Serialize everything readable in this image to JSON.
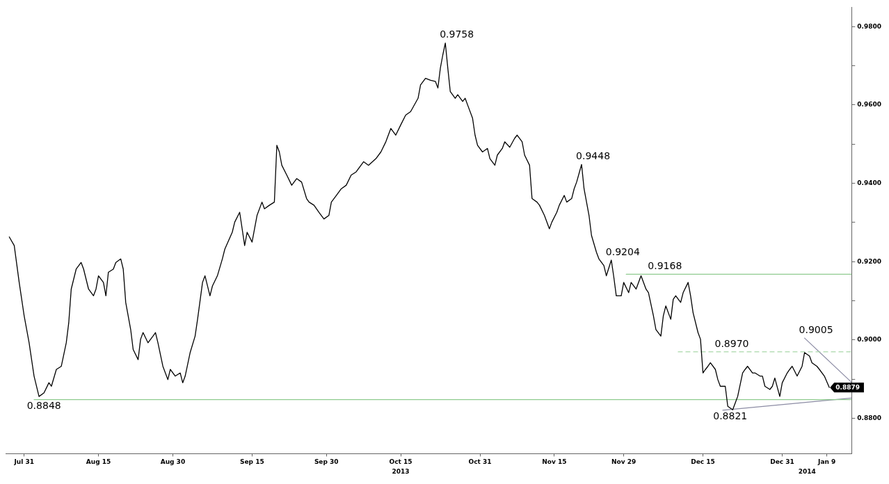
{
  "chart_data": {
    "type": "line",
    "marker": "none",
    "legend": false,
    "x": [
      "2013-07-28",
      "2013-07-29",
      "2013-07-30",
      "2013-07-31",
      "2013-08-01",
      "2013-08-02",
      "2013-08-03",
      "2013-08-04",
      "2013-08-05",
      "2013-08-05T12:00",
      "2013-08-06T12:00",
      "2013-08-07T12:00",
      "2013-08-08T12:00",
      "2013-08-09",
      "2013-08-09T12:00",
      "2013-08-10T12:00",
      "2013-08-11T12:00",
      "2013-08-12",
      "2013-08-13",
      "2013-08-14",
      "2013-08-14T12:00",
      "2013-08-15",
      "2013-08-16",
      "2013-08-16T12:00",
      "2013-08-17",
      "2013-08-18",
      "2013-08-18T12:00",
      "2013-08-19T12:00",
      "2013-08-20",
      "2013-08-20T12:00",
      "2013-08-21T12:00",
      "2013-08-22",
      "2013-08-23",
      "2013-08-23T12:00",
      "2013-08-24",
      "2013-08-25",
      "2013-08-26",
      "2013-08-26T12:00",
      "2013-08-27",
      "2013-08-28",
      "2013-08-29",
      "2013-08-29T12:00",
      "2013-08-30T12:00",
      "2013-08-31T12:00",
      "2013-09-01",
      "2013-09-01T12:00",
      "2013-09-02T12:00",
      "2013-09-03T12:00",
      "2013-09-04",
      "2013-09-05",
      "2013-09-05T12:00",
      "2013-09-06T12:00",
      "2013-09-07",
      "2013-09-08",
      "2013-09-09",
      "2013-09-09T12:00",
      "2013-09-11",
      "2013-09-11T12:00",
      "2013-09-12T12:00",
      "2013-09-13T12:00",
      "2013-09-14",
      "2013-09-15",
      "2013-09-15T12:00",
      "2013-09-16",
      "2013-09-17",
      "2013-09-17T12:00",
      "2013-09-18T12:00",
      "2013-09-19T12:00",
      "2013-09-20",
      "2013-09-20T12:00",
      "2013-09-21",
      "2013-09-22",
      "2013-09-23",
      "2013-09-24",
      "2013-09-25",
      "2013-09-26",
      "2013-09-26T12:00",
      "2013-09-27T12:00",
      "2013-09-28T12:00",
      "2013-09-29T12:00",
      "2013-09-30T12:00",
      "2013-10-01",
      "2013-10-02",
      "2013-10-03",
      "2013-10-04",
      "2013-10-05",
      "2013-10-06",
      "2013-10-07T12:00",
      "2013-10-08T12:00",
      "2013-10-10",
      "2013-10-11",
      "2013-10-12",
      "2013-10-13",
      "2013-10-14",
      "2013-10-15",
      "2013-10-16",
      "2013-10-17",
      "2013-10-18T12:00",
      "2013-10-19",
      "2013-10-20",
      "2013-10-21",
      "2013-10-22",
      "2013-10-22T12:00",
      "2013-10-23",
      "2013-10-23T12:00",
      "2013-10-24",
      "2013-10-24T12:00",
      "2013-10-25",
      "2013-10-26",
      "2013-10-26T12:00",
      "2013-10-27T12:00",
      "2013-10-28",
      "2013-10-28T12:00",
      "2013-10-29T12:00",
      "2013-10-30",
      "2013-10-30T12:00",
      "2013-10-31T12:00",
      "2013-11-01T12:00",
      "2013-11-02",
      "2013-11-03",
      "2013-11-03T12:00",
      "2013-11-04T12:00",
      "2013-11-05",
      "2013-11-06",
      "2013-11-07",
      "2013-11-07T12:00",
      "2013-11-08T12:00",
      "2013-11-09",
      "2013-11-10",
      "2013-11-10T12:00",
      "2013-11-11T12:00",
      "2013-11-12",
      "2013-11-13",
      "2013-11-14",
      "2013-11-14T12:00",
      "2013-11-15T12:00",
      "2013-11-16",
      "2013-11-17",
      "2013-11-17T12:00",
      "2013-11-18T12:00",
      "2013-11-19",
      "2013-11-19T12:00",
      "2013-11-20T12:00",
      "2013-11-21",
      "2013-11-21T12:00",
      "2013-11-22",
      "2013-11-22T12:00",
      "2013-11-23T12:00",
      "2013-11-24",
      "2013-11-25",
      "2013-11-25T12:00",
      "2013-11-26T12:00",
      "2013-11-27",
      "2013-11-27T12:00",
      "2013-11-28T12:00",
      "2013-11-29",
      "2013-11-30",
      "2013-11-30T12:00",
      "2013-12-01T12:00",
      "2013-12-02T12:00",
      "2013-12-03T12:00",
      "2013-12-04",
      "2013-12-05",
      "2013-12-05T12:00",
      "2013-12-06T12:00",
      "2013-12-07",
      "2013-12-07T12:00",
      "2013-12-08T12:00",
      "2013-12-09",
      "2013-12-09T12:00",
      "2013-12-10T12:00",
      "2013-12-11",
      "2013-12-12",
      "2013-12-12T12:00",
      "2013-12-13",
      "2013-12-14",
      "2013-12-14T12:00",
      "2013-12-15",
      "2013-12-15T12:00",
      "2013-12-16",
      "2013-12-16T12:00",
      "2013-12-17T12:00",
      "2013-12-18",
      "2013-12-18T12:00",
      "2013-12-19T12:00",
      "2013-12-20",
      "2013-12-21",
      "2013-12-21T12:00",
      "2013-12-22",
      "2013-12-23",
      "2013-12-23T12:00",
      "2013-12-24",
      "2013-12-25",
      "2013-12-25T12:00",
      "2013-12-26T12:00",
      "2013-12-27",
      "2013-12-27T12:00",
      "2013-12-28T12:00",
      "2013-12-29",
      "2013-12-29T12:00",
      "2013-12-30T12:00",
      "2013-12-31",
      "2014-01-01",
      "2014-01-01T12:00",
      "2014-01-02",
      "2014-01-03",
      "2014-01-04",
      "2014-01-04T12:00",
      "2014-01-05T12:00",
      "2014-01-06",
      "2014-01-07",
      "2014-01-07T12:00",
      "2014-01-08T12:00",
      "2014-01-09T12:00"
    ],
    "series": [
      {
        "color": "#000000",
        "values": [
          0.9263,
          0.9241,
          0.9147,
          0.9062,
          0.8993,
          0.8908,
          0.8856,
          0.8865,
          0.8891,
          0.8882,
          0.8925,
          0.8933,
          0.8993,
          0.9044,
          0.913,
          0.9181,
          0.9198,
          0.9181,
          0.913,
          0.9113,
          0.913,
          0.9164,
          0.9147,
          0.9113,
          0.9173,
          0.9181,
          0.9198,
          0.9207,
          0.9181,
          0.9096,
          0.9027,
          0.8976,
          0.895,
          0.9002,
          0.9019,
          0.8993,
          0.901,
          0.9019,
          0.8993,
          0.8933,
          0.8899,
          0.8925,
          0.8908,
          0.8916,
          0.8891,
          0.8908,
          0.8968,
          0.901,
          0.9053,
          0.9147,
          0.9164,
          0.9113,
          0.9138,
          0.9164,
          0.9207,
          0.9232,
          0.9275,
          0.9301,
          0.9326,
          0.9241,
          0.9275,
          0.925,
          0.9284,
          0.9318,
          0.9352,
          0.9335,
          0.9344,
          0.9352,
          0.9497,
          0.948,
          0.9446,
          0.9421,
          0.9395,
          0.9412,
          0.9403,
          0.9361,
          0.9352,
          0.9344,
          0.9326,
          0.9309,
          0.9318,
          0.9352,
          0.9369,
          0.9386,
          0.9395,
          0.9421,
          0.9429,
          0.9455,
          0.9446,
          0.9463,
          0.948,
          0.9506,
          0.954,
          0.9523,
          0.9549,
          0.9574,
          0.9583,
          0.9617,
          0.9651,
          0.9668,
          0.9663,
          0.966,
          0.9643,
          0.9694,
          0.9728,
          0.9758,
          0.9694,
          0.9634,
          0.9617,
          0.9626,
          0.9609,
          0.9617,
          0.96,
          0.9566,
          0.9523,
          0.9497,
          0.948,
          0.9489,
          0.9463,
          0.9446,
          0.9472,
          0.9489,
          0.9506,
          0.9492,
          0.9515,
          0.9523,
          0.9506,
          0.9472,
          0.9446,
          0.9361,
          0.9352,
          0.9344,
          0.9318,
          0.9284,
          0.9301,
          0.9326,
          0.9344,
          0.9369,
          0.9352,
          0.9361,
          0.9386,
          0.9403,
          0.9448,
          0.9386,
          0.9352,
          0.9318,
          0.9267,
          0.9224,
          0.9207,
          0.919,
          0.9164,
          0.9204,
          0.9161,
          0.9113,
          0.9113,
          0.9147,
          0.9121,
          0.9147,
          0.913,
          0.9164,
          0.913,
          0.9121,
          0.9062,
          0.9027,
          0.901,
          0.9062,
          0.9087,
          0.9053,
          0.9104,
          0.9113,
          0.9096,
          0.9121,
          0.9147,
          0.9113,
          0.907,
          0.9019,
          0.9002,
          0.8916,
          0.8925,
          0.8933,
          0.8942,
          0.8925,
          0.8899,
          0.8882,
          0.8882,
          0.8831,
          0.8822,
          0.8839,
          0.8856,
          0.8916,
          0.8925,
          0.8933,
          0.8916,
          0.8916,
          0.8908,
          0.8908,
          0.8882,
          0.8874,
          0.8882,
          0.8903,
          0.8856,
          0.8891,
          0.8916,
          0.8925,
          0.8933,
          0.8908,
          0.8933,
          0.8968,
          0.8959,
          0.8942,
          0.8933,
          0.8925,
          0.8908,
          0.8879
        ],
        "value_labels": [
          null,
          null,
          null,
          null,
          null,
          null,
          null,
          null,
          null,
          null,
          null,
          null,
          null,
          null,
          null,
          null,
          null,
          null,
          null,
          null,
          null,
          null,
          null,
          null,
          null,
          null,
          null,
          null,
          null,
          null,
          null,
          null,
          null,
          null,
          null,
          null,
          null,
          null,
          null,
          null,
          null,
          null,
          null,
          null,
          null,
          null,
          null,
          null,
          null,
          null,
          null,
          null,
          null,
          null,
          null,
          null,
          null,
          null,
          null,
          null,
          null,
          null,
          null,
          null,
          null,
          null,
          null,
          null,
          null,
          null,
          null,
          null,
          null,
          null,
          null,
          null,
          null,
          null,
          null,
          null,
          null,
          null,
          null,
          null,
          null,
          null,
          null,
          null,
          null,
          null,
          null,
          null,
          null,
          null,
          null,
          null,
          null,
          null,
          null,
          null,
          null,
          null,
          null,
          null,
          null,
          null,
          null,
          null,
          null,
          null,
          null,
          null,
          null,
          null,
          null,
          null,
          null,
          null,
          null,
          null,
          null,
          null,
          null,
          null,
          null,
          null,
          null,
          null,
          null,
          null,
          null,
          null,
          null,
          null,
          null,
          null,
          null,
          null,
          null,
          null,
          null,
          null,
          null,
          null,
          null,
          null,
          null,
          null,
          null,
          null,
          null,
          null,
          null,
          null,
          null,
          null,
          null,
          null,
          null,
          null,
          null,
          null,
          null,
          null,
          null,
          null,
          null,
          null,
          null,
          null,
          null,
          null,
          null,
          null,
          null,
          null,
          null,
          null,
          null,
          null,
          null,
          null,
          null,
          null,
          null,
          null,
          null,
          null,
          null,
          null,
          null,
          null,
          null,
          null,
          null,
          null,
          null,
          null,
          null,
          null,
          null,
          null,
          null,
          null,
          null,
          null,
          null,
          null,
          null,
          null,
          null,
          null,
          null,
          "0.8879"
        ]
      },
      {
        "type": "line",
        "color": "#8fcb8f",
        "x": [
          "2013-08-02",
          "2014-01-14"
        ],
        "values": [
          0.8848,
          0.8848
        ]
      },
      {
        "type": "line",
        "color": "#8fcb8f",
        "x": [
          "2013-11-29T12:00",
          "2014-01-14"
        ],
        "values": [
          0.9168,
          0.9168
        ]
      },
      {
        "type": "line",
        "color": "#a8d8a8",
        "line_style": "dashed",
        "x": [
          "2013-12-10",
          "2014-01-14"
        ],
        "values": [
          0.897,
          0.897
        ]
      },
      {
        "type": "line",
        "color": "#8c8ca4",
        "x": [
          "2014-01-04T12:00",
          "2014-01-14"
        ],
        "values": [
          0.9005,
          0.8892
        ]
      },
      {
        "type": "line",
        "color": "#8c8ca4",
        "x": [
          "2013-12-19",
          "2014-01-14"
        ],
        "values": [
          0.8821,
          0.8852
        ]
      }
    ],
    "xlim": [
      "2013-07-27T06:00",
      "2014-01-14"
    ],
    "xticks": [
      {
        "value": "2013-07-31",
        "label": "Jul 31"
      },
      {
        "value": "2013-08-15",
        "label": "Aug 15"
      },
      {
        "value": "2013-08-30",
        "label": "Aug 30"
      },
      {
        "value": "2013-09-15",
        "label": "Sep 15"
      },
      {
        "value": "2013-09-30",
        "label": "Sep 30"
      },
      {
        "value": "2013-10-15",
        "label": "Oct 15"
      },
      {
        "value": "2013-10-31",
        "label": "Oct 31"
      },
      {
        "value": "2013-11-15",
        "label": "Nov 15"
      },
      {
        "value": "2013-11-29",
        "label": "Nov 29"
      },
      {
        "value": "2013-12-15",
        "label": "Dec 15"
      },
      {
        "value": "2013-12-31",
        "label": "Dec 31"
      },
      {
        "value": "2014-01-09",
        "label": "Jan 9"
      }
    ],
    "ylim": [
      0.871,
      0.985
    ],
    "yticks": [
      {
        "value": 0.88,
        "label": "0.8800"
      },
      {
        "value": 0.89,
        "label": null
      },
      {
        "value": 0.9,
        "label": "0.9000"
      },
      {
        "value": 0.91,
        "label": null
      },
      {
        "value": 0.92,
        "label": "0.9200"
      },
      {
        "value": 0.93,
        "label": null
      },
      {
        "value": 0.94,
        "label": "0.9400"
      },
      {
        "value": 0.95,
        "label": null
      },
      {
        "value": 0.96,
        "label": "0.9600"
      },
      {
        "value": 0.97,
        "label": null
      },
      {
        "value": 0.98,
        "label": "0.9800"
      }
    ],
    "annotations": [
      {
        "text": "0.9758",
        "x": "2013-10-24",
        "y": 0.9758
      },
      {
        "text": "0.9448",
        "x": "2013-11-20T12:00",
        "y": 0.9448
      },
      {
        "text": "0.9204",
        "x": "2013-11-26T12:00",
        "y": 0.9204
      },
      {
        "text": "0.9168",
        "x": "2013-12-05",
        "y": 0.9168
      },
      {
        "text": "0.8970",
        "x": "2013-12-18T12:00",
        "y": 0.897
      },
      {
        "text": "0.9005",
        "x": "2014-01-04T12:00",
        "y": 0.9005
      },
      {
        "text": "0.8848",
        "x": "2013-08-04",
        "y": 0.8848
      },
      {
        "text": "0.8821",
        "x": "2013-12-20T12:00",
        "y": 0.8821
      }
    ],
    "x2lim": [
      "2013-07-27T06:00",
      "2014-01-14"
    ],
    "x2ticks": [
      {
        "value": "2013-10-15",
        "label": "2013"
      },
      {
        "value": "2014-01-05",
        "label": "2014"
      }
    ]
  }
}
